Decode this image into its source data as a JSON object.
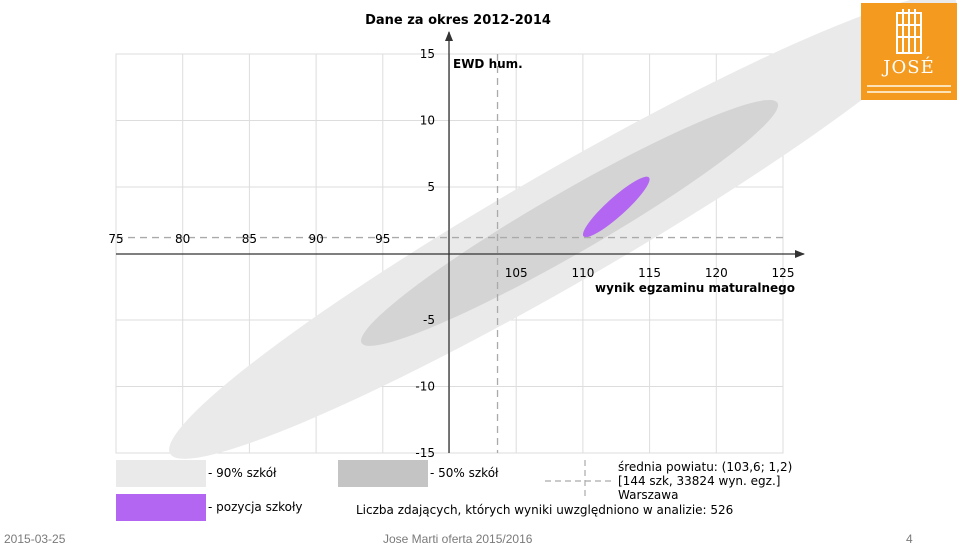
{
  "chart_data": {
    "type": "scatter",
    "title": "Dane za okres 2012-2014",
    "xlabel": "wynik egzaminu maturalnego",
    "ylabel": "EWD hum.",
    "xlim": [
      75,
      125
    ],
    "ylim": [
      -15,
      15
    ],
    "x_ticks": [
      75,
      80,
      85,
      90,
      95,
      105,
      110,
      115,
      120,
      125
    ],
    "y_ticks": [
      15,
      10,
      5,
      -5,
      -10,
      -15
    ],
    "grid": true,
    "county_mean": {
      "x": 103.6,
      "y": 1.2
    },
    "ellipses": [
      {
        "name": "- 90% szkół",
        "color": "#eaeaea",
        "cx": 108.5,
        "cy": 2.0,
        "rx": 34.0,
        "ry": 4.2,
        "angle": 30
      },
      {
        "name": "- 50% szkół",
        "color": "#d4d4d4",
        "cx": 109.0,
        "cy": 2.3,
        "rx": 18.0,
        "ry": 2.3,
        "angle": 30
      },
      {
        "name": "- pozycja szkoły",
        "color": "#b266f2",
        "cx": 112.5,
        "cy": 3.5,
        "rx": 3.3,
        "ry": 0.7,
        "angle": 42
      }
    ]
  },
  "legend": {
    "ellipse90_label": "- 90% szkół",
    "ellipse50_label": "- 50% szkół",
    "school_label": "- pozycja szkoły",
    "mean_line1": "średnia powiatu: (103,6; 1,2)",
    "mean_line2": "[144 szk, 33824 wyn. egz.]",
    "mean_line3": "Warszawa",
    "count_text": "Liczba zdających, których wyniki uwzględniono w analizie: 526"
  },
  "colors": {
    "ellipse90": "#eaeaea",
    "ellipse50": "#d4d4d4",
    "school": "#b266f2",
    "logo_bg": "#f39a1f"
  },
  "logo": {
    "text": "JOSÉ",
    "icon": "building-icon"
  },
  "footer": {
    "date": "2015-03-25",
    "center": "Jose Marti oferta 2015/2016",
    "page": "4"
  }
}
